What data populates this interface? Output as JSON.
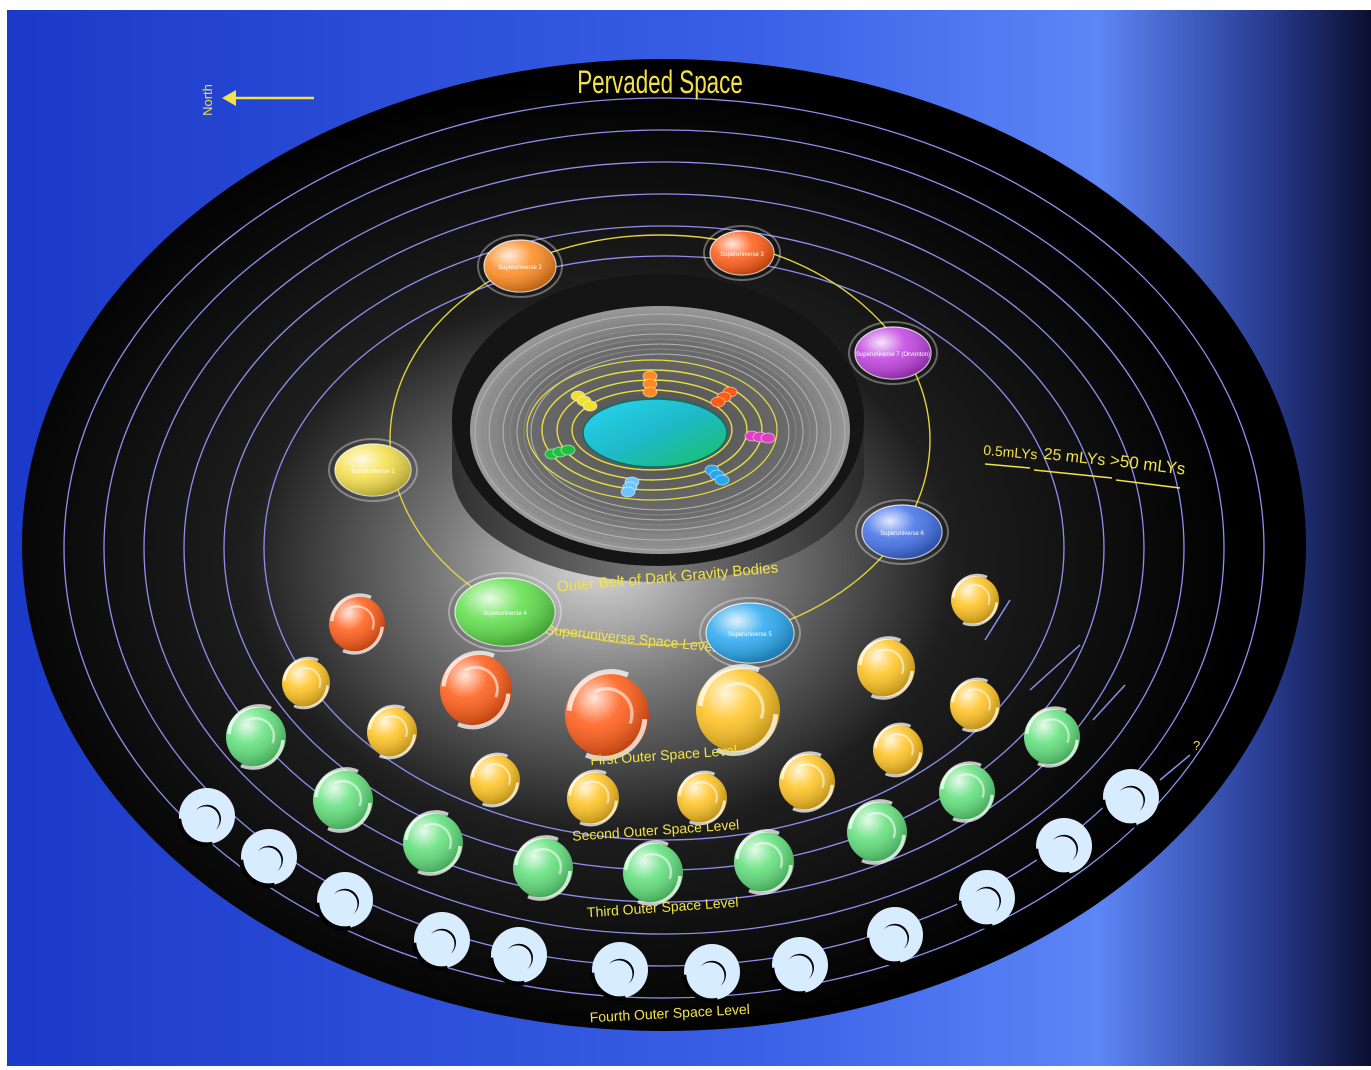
{
  "title": "Pervaded Space",
  "compass": {
    "label": "North"
  },
  "scale_labels": [
    "0.5mLYs",
    "25 mLYs",
    ">50 mLYs"
  ],
  "levels": {
    "outer_belt": "Outer Belt of Dark Gravity Bodies",
    "superuniverse": "Superuniverse Space Level",
    "first": "First Outer Space Level",
    "second": "Second Outer Space Level",
    "third": "Third Outer Space Level",
    "fourth": "Fourth Outer Space Level"
  },
  "question_mark": "?",
  "superuniverses": [
    {
      "label": "Superuniverse 1",
      "color": "#f5e04a"
    },
    {
      "label": "Superuniverse 2",
      "color": "#ff8a1f"
    },
    {
      "label": "Superuniverse 3",
      "color": "#ff5a14"
    },
    {
      "label": "Superuniverse 7 (Orvonton)",
      "color": "#c040e0"
    },
    {
      "label": "Superuniverse 6",
      "color": "#3f6fe8"
    },
    {
      "label": "Superuniverse 5",
      "color": "#29a8f0"
    },
    {
      "label": "Superuniverse 4",
      "color": "#5fe04a"
    }
  ],
  "colors": {
    "background": "#3b63e0",
    "ellipse": "#000000",
    "label": "#f2e24a",
    "orbit": "#8f8ff0",
    "havona": "#2ad0b0",
    "first_level_red": "#ff5a14",
    "first_level_gold": "#ffc21f",
    "third_level_green": "#5fe07a",
    "fourth_level_white": "#d8ecff"
  }
}
